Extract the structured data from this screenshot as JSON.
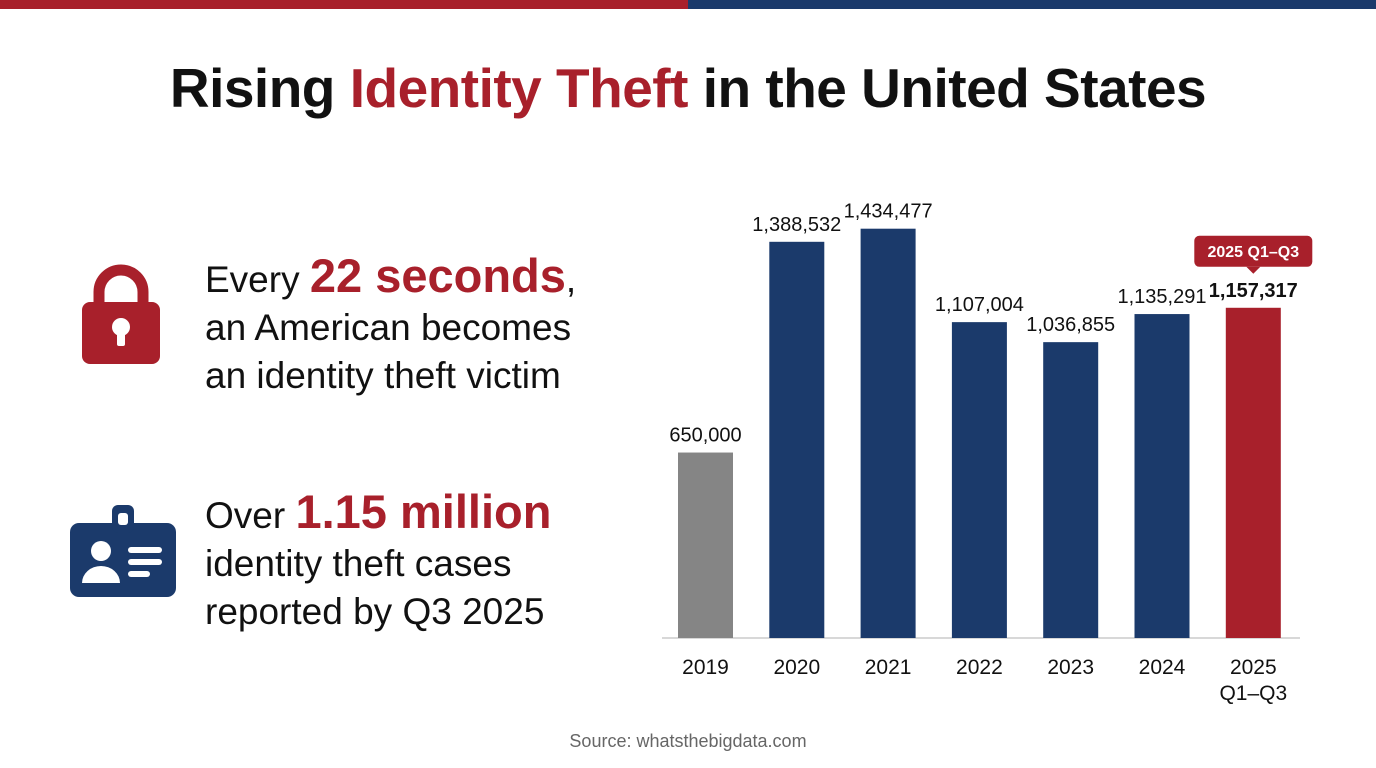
{
  "title": {
    "part1": "Rising ",
    "highlight": "Identity Theft",
    "part2": " in the United States"
  },
  "stats": [
    {
      "icon": "lock-icon",
      "prefix": "Every ",
      "highlight": "22 seconds",
      "suffix": ",",
      "line2": "an American becomes",
      "line3": "an identity theft victim"
    },
    {
      "icon": "id-card-icon",
      "prefix": "Over ",
      "highlight": "1.15 million",
      "line2": "identity theft cases",
      "line3": "reported by Q3 2025"
    }
  ],
  "source": "Source: whatsthebigdata.com",
  "colors": {
    "red": "#a8202b",
    "navy": "#1b3a6b",
    "gray": "#858585",
    "text": "#111111"
  },
  "chart_data": {
    "type": "bar",
    "categories": [
      "2019",
      "2020",
      "2021",
      "2022",
      "2023",
      "2024",
      "2025 Q1–Q3"
    ],
    "values": [
      650000,
      1388532,
      1434477,
      1107004,
      1036855,
      1135291,
      1157317
    ],
    "value_labels": [
      "650,000",
      "1,388,532",
      "1,434,477",
      "1,107,004",
      "1,036,855",
      "1,135,291",
      "1,157,317"
    ],
    "bar_colors": [
      "#858585",
      "#1b3a6b",
      "#1b3a6b",
      "#1b3a6b",
      "#1b3a6b",
      "#1b3a6b",
      "#a8202b"
    ],
    "highlight_index": 6,
    "callout": "2025 Q1–Q3",
    "ylim": [
      0,
      1500000
    ],
    "grid": false,
    "legend": "none"
  }
}
